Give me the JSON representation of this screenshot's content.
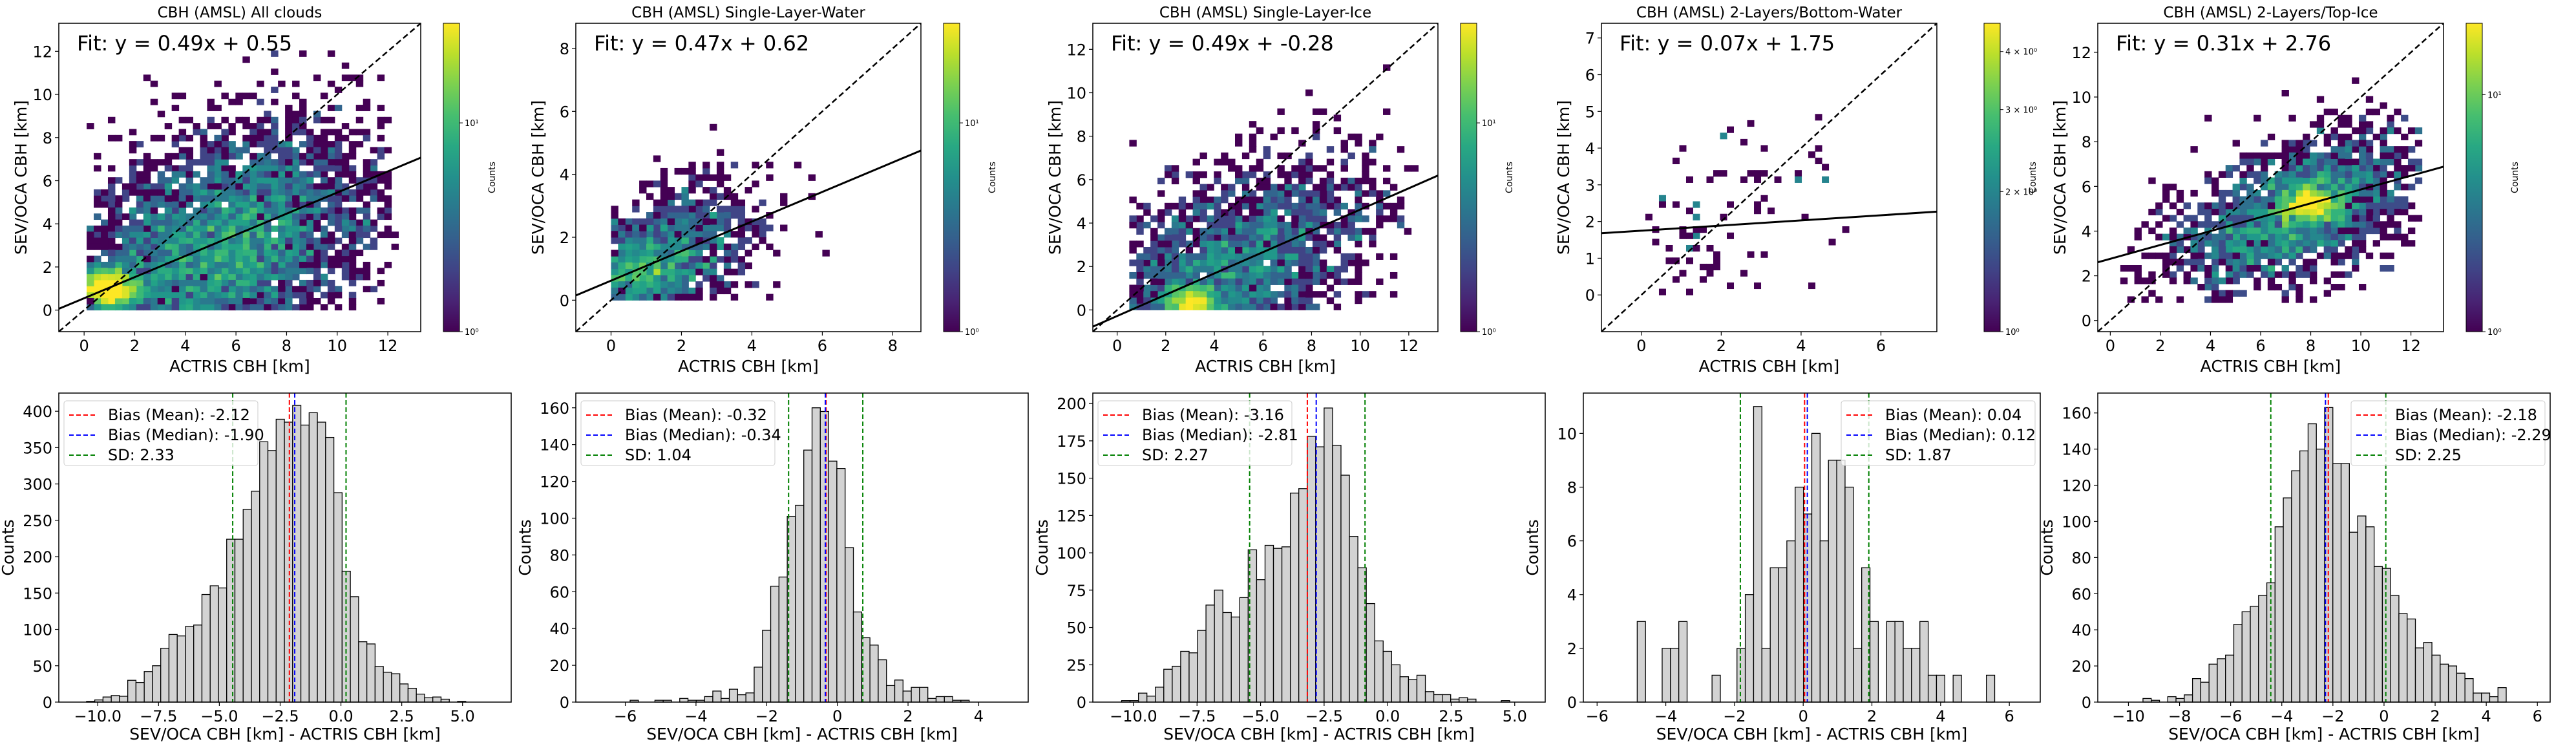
{
  "figure": {
    "background": "#ffffff",
    "colormap": "viridis",
    "hist_fill": "#d3d3d3",
    "hist_edge": "#000000",
    "mean_color": "#ff0000",
    "median_color": "#0000ff",
    "sd_color": "#008000"
  },
  "chart_data": [
    {
      "type": "heatmap",
      "title": "CBH (AMSL) All clouds",
      "xlabel": "ACTRIS CBH [km]",
      "ylabel": "SEV/OCA CBH [km]",
      "xlim": [
        -1.0,
        13.3
      ],
      "ylim": [
        -1.0,
        13.3
      ],
      "xticks": [
        0,
        2,
        4,
        6,
        8,
        10,
        12
      ],
      "yticks": [
        0,
        2,
        4,
        6,
        8,
        10,
        12
      ],
      "fit_label": "Fit: y = 0.49x + 0.55",
      "fit": {
        "slope": 0.49,
        "intercept": 0.55
      },
      "identity_line": true,
      "colorbar": {
        "label": "Counts",
        "scale": "log",
        "ticks": [
          {
            "value": 1,
            "label": "10⁰"
          },
          {
            "value": 10,
            "label": "10¹"
          }
        ],
        "range": [
          1,
          30
        ]
      },
      "density": {
        "cx": 5.5,
        "cy": 3.0,
        "sx": 3.0,
        "sy": 2.6,
        "xmin": 0.1,
        "xmax": 12.2,
        "ymin": 0.0,
        "ymax": 12.0,
        "binw": 0.28,
        "peak": [
          1.0,
          1.0
        ],
        "n": 5500,
        "seed": 11
      }
    },
    {
      "type": "heatmap",
      "title": "CBH (AMSL) Single-Layer-Water",
      "xlabel": "ACTRIS CBH [km]",
      "ylabel": "SEV/OCA CBH [km]",
      "xlim": [
        -1.0,
        8.8
      ],
      "ylim": [
        -1.0,
        8.8
      ],
      "xticks": [
        0,
        2,
        4,
        6,
        8
      ],
      "yticks": [
        0,
        2,
        4,
        6,
        8
      ],
      "fit_label": "Fit: y = 0.47x + 0.62",
      "fit": {
        "slope": 0.47,
        "intercept": 0.62
      },
      "identity_line": true,
      "colorbar": {
        "label": "Counts",
        "scale": "log",
        "ticks": [
          {
            "value": 1,
            "label": "10⁰"
          },
          {
            "value": 10,
            "label": "10¹"
          }
        ],
        "range": [
          1,
          30
        ]
      },
      "density": {
        "cx": 1.6,
        "cy": 1.4,
        "sx": 1.3,
        "sy": 1.0,
        "xmin": 0.0,
        "xmax": 7.8,
        "ymin": 0.0,
        "ymax": 7.4,
        "binw": 0.2,
        "peak": [
          0.7,
          0.9
        ],
        "n": 1400,
        "seed": 23
      }
    },
    {
      "type": "heatmap",
      "title": "CBH (AMSL) Single-Layer-Ice",
      "xlabel": "ACTRIS CBH [km]",
      "ylabel": "SEV/OCA CBH [km]",
      "xlim": [
        -1.0,
        13.2
      ],
      "ylim": [
        -1.0,
        13.2
      ],
      "xticks": [
        0,
        2,
        4,
        6,
        8,
        10,
        12
      ],
      "yticks": [
        0,
        2,
        4,
        6,
        8,
        10,
        12
      ],
      "fit_label": "Fit: y = 0.49x + -0.28",
      "fit": {
        "slope": 0.49,
        "intercept": -0.28
      },
      "identity_line": true,
      "colorbar": {
        "label": "Counts",
        "scale": "log",
        "ticks": [
          {
            "value": 1,
            "label": "10⁰"
          },
          {
            "value": 10,
            "label": "10¹"
          }
        ],
        "range": [
          1,
          30
        ]
      },
      "density": {
        "cx": 5.0,
        "cy": 2.0,
        "sx": 2.8,
        "sy": 2.2,
        "xmin": 0.5,
        "xmax": 12.2,
        "ymin": 0.0,
        "ymax": 11.5,
        "binw": 0.29,
        "peak": [
          3.0,
          0.3
        ],
        "n": 2800,
        "seed": 37
      }
    },
    {
      "type": "heatmap",
      "title": "CBH (AMSL) 2-Layers/Bottom-Water",
      "xlabel": "ACTRIS CBH [km]",
      "ylabel": "SEV/OCA CBH [km]",
      "xlim": [
        -1.0,
        7.4
      ],
      "ylim": [
        -1.0,
        7.4
      ],
      "xticks": [
        0,
        2,
        4,
        6
      ],
      "yticks": [
        0,
        1,
        2,
        3,
        4,
        5,
        6,
        7
      ],
      "fit_label": "Fit: y = 0.07x + 1.75",
      "fit": {
        "slope": 0.07,
        "intercept": 1.75
      },
      "identity_line": true,
      "colorbar": {
        "label": "Counts",
        "scale": "log",
        "ticks": [
          {
            "value": 1,
            "label": "10⁰"
          },
          {
            "value": 2,
            "label": "2 × 10⁰"
          },
          {
            "value": 3,
            "label": "3 × 10⁰"
          },
          {
            "value": 4,
            "label": "4 × 10⁰"
          }
        ],
        "range": [
          1,
          4.6
        ]
      },
      "density": {
        "cx": 1.8,
        "cy": 1.6,
        "sx": 1.6,
        "sy": 1.4,
        "xmin": 0.1,
        "xmax": 5.9,
        "ymin": 0.0,
        "ymax": 6.6,
        "binw": 0.17,
        "peak": [
          0.8,
          1.8
        ],
        "n": 110,
        "seed": 51
      }
    },
    {
      "type": "heatmap",
      "title": "CBH (AMSL) 2-Layers/Top-Ice",
      "xlabel": "ACTRIS CBH [km]",
      "ylabel": "SEV/OCA CBH [km]",
      "xlim": [
        -0.5,
        13.3
      ],
      "ylim": [
        -0.5,
        13.3
      ],
      "xticks": [
        0,
        2,
        4,
        6,
        8,
        10,
        12
      ],
      "yticks": [
        0,
        2,
        4,
        6,
        8,
        10,
        12
      ],
      "fit_label": "Fit: y = 0.31x + 2.76",
      "fit": {
        "slope": 0.31,
        "intercept": 2.76
      },
      "identity_line": true,
      "colorbar": {
        "label": "Counts",
        "scale": "log",
        "ticks": [
          {
            "value": 1,
            "label": "10⁰"
          },
          {
            "value": 10,
            "label": "10¹"
          }
        ],
        "range": [
          1,
          20
        ]
      },
      "density": {
        "cx": 7.5,
        "cy": 5.0,
        "sx": 2.6,
        "sy": 1.6,
        "xmin": 0.4,
        "xmax": 12.4,
        "ymin": 0.8,
        "ymax": 11.0,
        "binw": 0.28,
        "peak": [
          8.0,
          5.2
        ],
        "n": 2300,
        "seed": 73
      }
    },
    {
      "type": "bar",
      "subtype": "histogram",
      "xlabel": "SEV/OCA CBH [km] - ACTRIS CBH [km]",
      "ylabel": "Counts",
      "xlim": [
        -11.6,
        7.0
      ],
      "ylim": [
        0,
        425
      ],
      "xticks": [
        -10.0,
        -7.5,
        -5.0,
        -2.5,
        0.0,
        2.5,
        5.0
      ],
      "xtick_labels": [
        "−10.0",
        "−7.5",
        "−5.0",
        "−2.5",
        "0.0",
        "2.5",
        "5.0"
      ],
      "yticks": [
        0,
        50,
        100,
        150,
        200,
        250,
        300,
        350,
        400
      ],
      "bin_start": -10.8,
      "bin_width": 0.339,
      "values": [
        0,
        1,
        3,
        7,
        9,
        8,
        30,
        27,
        42,
        50,
        74,
        93,
        91,
        104,
        106,
        148,
        160,
        157,
        224,
        224,
        265,
        290,
        358,
        346,
        389,
        385,
        408,
        381,
        398,
        385,
        364,
        288,
        180,
        145,
        83,
        80,
        49,
        41,
        39,
        25,
        19,
        11,
        6,
        7,
        4,
        0,
        1,
        0,
        0
      ],
      "lines": {
        "mean": -2.12,
        "median": -1.9,
        "sd_low": -4.45,
        "sd_high": 0.21
      },
      "legend": {
        "position": "upper-left",
        "entries": [
          "Bias (Mean): -2.12",
          "Bias (Median): -1.90",
          "SD: 2.33"
        ]
      }
    },
    {
      "type": "bar",
      "subtype": "histogram",
      "xlabel": "SEV/OCA CBH [km] - ACTRIS CBH [km]",
      "ylabel": "Counts",
      "xlim": [
        -7.4,
        5.4
      ],
      "ylim": [
        0,
        168
      ],
      "xticks": [
        -6,
        -4,
        -2,
        0,
        2,
        4
      ],
      "xtick_labels": [
        "−6",
        "−4",
        "−2",
        "0",
        "2",
        "4"
      ],
      "yticks": [
        0,
        20,
        40,
        60,
        80,
        100,
        120,
        140,
        160
      ],
      "bin_start": -6.8,
      "bin_width": 0.234,
      "values": [
        0,
        0,
        0,
        0,
        1,
        0,
        0,
        1,
        1,
        0,
        2,
        1,
        1,
        3,
        6,
        2,
        7,
        4,
        5,
        19,
        39,
        63,
        68,
        101,
        107,
        137,
        160,
        158,
        131,
        127,
        84,
        49,
        35,
        31,
        23,
        9,
        12,
        6,
        8,
        8,
        2,
        3,
        3,
        1,
        1,
        0,
        0,
        0,
        0,
        0
      ],
      "lines": {
        "mean": -0.32,
        "median": -0.34,
        "sd_low": -1.38,
        "sd_high": 0.72
      },
      "legend": {
        "position": "upper-left",
        "entries": [
          "Bias (Mean): -0.32",
          "Bias (Median): -0.34",
          "SD: 1.04"
        ]
      }
    },
    {
      "type": "bar",
      "subtype": "histogram",
      "xlabel": "SEV/OCA CBH [km] - ACTRIS CBH [km]",
      "ylabel": "Counts",
      "xlim": [
        -11.6,
        6.2
      ],
      "ylim": [
        0,
        207
      ],
      "xticks": [
        -10.0,
        -7.5,
        -5.0,
        -2.5,
        0.0,
        2.5,
        5.0
      ],
      "xtick_labels": [
        "−10.0",
        "−7.5",
        "−5.0",
        "−2.5",
        "0.0",
        "2.5",
        "5.0"
      ],
      "yticks": [
        0,
        25,
        50,
        75,
        100,
        125,
        150,
        175,
        200
      ],
      "bin_start": -10.8,
      "bin_width": 0.332,
      "values": [
        0,
        1,
        1,
        6,
        4,
        10,
        22,
        24,
        34,
        33,
        48,
        65,
        75,
        60,
        57,
        70,
        102,
        82,
        105,
        103,
        104,
        140,
        143,
        178,
        171,
        197,
        172,
        152,
        111,
        90,
        66,
        41,
        34,
        25,
        17,
        15,
        18,
        7,
        5,
        5,
        2,
        3,
        2,
        0,
        0,
        0,
        1,
        0,
        0
      ],
      "lines": {
        "mean": -3.16,
        "median": -2.81,
        "sd_low": -5.43,
        "sd_high": -0.89
      },
      "legend": {
        "position": "upper-left",
        "entries": [
          "Bias (Mean): -3.16",
          "Bias (Median): -2.81",
          "SD: 2.27"
        ]
      }
    },
    {
      "type": "bar",
      "subtype": "histogram",
      "xlabel": "SEV/OCA CBH [km] - ACTRIS CBH [km]",
      "ylabel": "Counts",
      "xlim": [
        -6.4,
        6.9
      ],
      "ylim": [
        0,
        11.5
      ],
      "xticks": [
        -6,
        -4,
        -2,
        0,
        2,
        4,
        6
      ],
      "xtick_labels": [
        "−6",
        "−4",
        "−2",
        "0",
        "2",
        "4",
        "6"
      ],
      "yticks": [
        0,
        2,
        4,
        6,
        8,
        10
      ],
      "bin_start": -5.8,
      "bin_width": 0.242,
      "values": [
        0,
        0,
        0,
        0,
        3,
        0,
        0,
        2,
        2,
        3,
        0,
        0,
        0,
        1,
        0,
        0,
        2,
        4,
        11,
        2,
        5,
        5,
        6,
        8,
        7,
        10,
        6,
        9,
        9,
        8,
        2,
        5,
        3,
        0,
        3,
        3,
        2,
        2,
        3,
        1,
        1,
        0,
        1,
        0,
        0,
        0,
        1,
        0,
        0,
        0
      ],
      "lines": {
        "mean": 0.04,
        "median": 0.12,
        "sd_low": -1.83,
        "sd_high": 1.91
      },
      "legend": {
        "position": "upper-right",
        "entries": [
          "Bias (Mean): 0.04",
          "Bias (Median): 0.12",
          "SD: 1.87"
        ]
      }
    },
    {
      "type": "bar",
      "subtype": "histogram",
      "xlabel": "SEV/OCA CBH [km] - ACTRIS CBH [km]",
      "ylabel": "Counts",
      "xlim": [
        -11.2,
        6.5
      ],
      "ylim": [
        0,
        171
      ],
      "xticks": [
        -10,
        -8,
        -6,
        -4,
        -2,
        0,
        2,
        4,
        6
      ],
      "xtick_labels": [
        "−10",
        "−8",
        "−6",
        "−4",
        "−2",
        "0",
        "2",
        "4",
        "6"
      ],
      "yticks": [
        0,
        20,
        40,
        60,
        80,
        100,
        120,
        140,
        160
      ],
      "bin_start": -10.4,
      "bin_width": 0.323,
      "values": [
        0,
        0,
        0,
        2,
        1,
        0,
        3,
        2,
        4,
        13,
        11,
        21,
        24,
        26,
        43,
        50,
        53,
        59,
        66,
        97,
        113,
        128,
        139,
        154,
        140,
        163,
        132,
        132,
        94,
        103,
        97,
        75,
        74,
        59,
        49,
        46,
        30,
        33,
        26,
        21,
        20,
        16,
        13,
        5,
        5,
        3,
        8,
        0,
        0,
        0
      ],
      "lines": {
        "mean": -2.18,
        "median": -2.29,
        "sd_low": -4.43,
        "sd_high": 0.07
      },
      "legend": {
        "position": "upper-right",
        "entries": [
          "Bias (Mean): -2.18",
          "Bias (Median): -2.29",
          "SD: 2.25"
        ]
      }
    }
  ]
}
